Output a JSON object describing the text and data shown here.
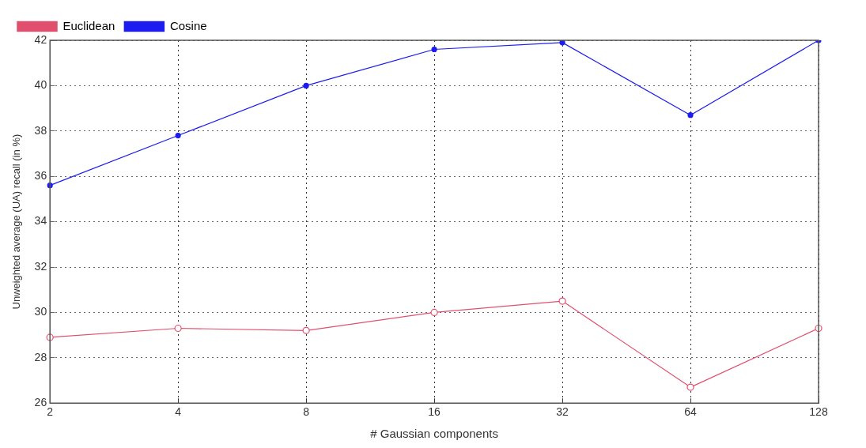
{
  "chart_data": {
    "type": "line",
    "xlabel": "# Gaussian components",
    "ylabel": "Unweighted average (UA) recall (in %)",
    "categories": [
      "2",
      "4",
      "8",
      "16",
      "32",
      "64",
      "128"
    ],
    "series": [
      {
        "name": "Euclidean",
        "color": "#e0506e",
        "marker": "circle",
        "values": [
          28.9,
          29.3,
          29.2,
          30.0,
          30.5,
          26.7,
          29.3
        ]
      },
      {
        "name": "Cosine",
        "color": "#1c1cf0",
        "marker": "circle",
        "values": [
          35.6,
          37.8,
          40.0,
          41.6,
          41.9,
          38.7,
          42.0
        ]
      }
    ],
    "ylim": [
      26,
      42
    ],
    "yticks": [
      26,
      28,
      30,
      32,
      34,
      36,
      38,
      40,
      42
    ],
    "grid": true,
    "legend": "top left",
    "line_style": "solid"
  }
}
